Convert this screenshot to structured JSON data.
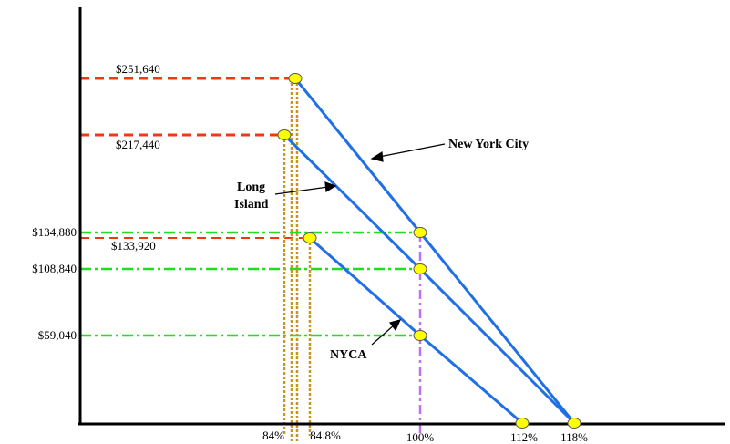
{
  "chart_data": {
    "type": "line",
    "xlabel": "",
    "ylabel": "",
    "series": [
      {
        "name": "New York City",
        "points": [
          {
            "x": 84.8,
            "y": 251640
          },
          {
            "x": 100,
            "y": 134880
          },
          {
            "x": 118,
            "y": 0
          }
        ],
        "color": "#1f6fe8"
      },
      {
        "name": "Long Island",
        "points": [
          {
            "x": 84,
            "y": 217440
          },
          {
            "x": 100,
            "y": 108840
          },
          {
            "x": 118,
            "y": 0
          }
        ],
        "color": "#1f6fe8"
      },
      {
        "name": "NYCA",
        "points": [
          {
            "x": 86,
            "y": 133920
          },
          {
            "x": 100,
            "y": 59040
          },
          {
            "x": 112,
            "y": 0
          }
        ],
        "color": "#1f6fe8"
      }
    ],
    "guides": {
      "red_dashed": [
        {
          "label": "$251,640"
        },
        {
          "label": "$217,440"
        },
        {
          "label": "$133,920"
        }
      ],
      "green_dashdot": [
        {
          "label": "$134,880"
        },
        {
          "label": "$108,840"
        },
        {
          "label": "$59,040"
        }
      ],
      "x_tick_labels": [
        "84%",
        "84.8%",
        "100%",
        "112%",
        "118%"
      ]
    },
    "colors": {
      "curve": "#1f6fe8",
      "red_guide": "#ee3a12",
      "green_guide": "#22dd22",
      "gold_guide": "#c8961e",
      "purple_guide": "#c070f0",
      "marker_fill": "#ffff00",
      "axis": "#000000"
    }
  }
}
